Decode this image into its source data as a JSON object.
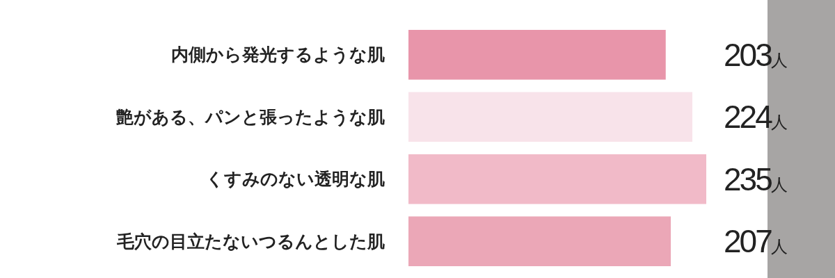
{
  "chart_data": {
    "type": "bar",
    "orientation": "horizontal",
    "categories": [
      "内側から発光するような肌",
      "艶がある、パンと張ったような肌",
      "くすみのない透明な肌",
      "毛穴の目立たないつるんとした肌"
    ],
    "values": [
      203,
      224,
      235,
      207
    ],
    "colors": [
      "#e895aa",
      "#f8e3ea",
      "#f1bac8",
      "#eba7b7"
    ],
    "value_labels": [
      "203人",
      "224人",
      "235人",
      "207人"
    ]
  }
}
